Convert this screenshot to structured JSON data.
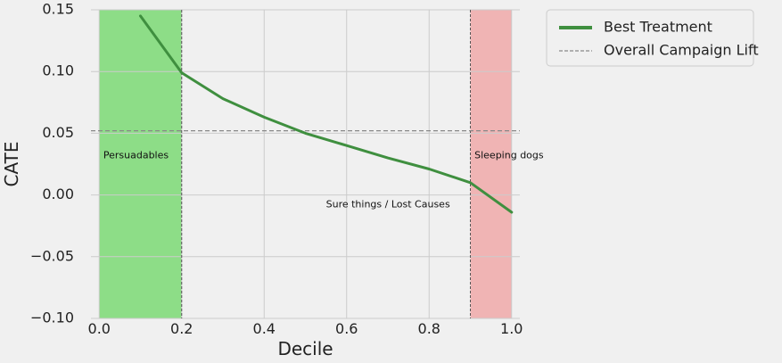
{
  "chart_data": {
    "type": "line",
    "xlabel": "Decile",
    "ylabel": "CATE",
    "xlim": [
      -0.02,
      1.02
    ],
    "ylim": [
      -0.1,
      0.15
    ],
    "x_ticks": [
      0.0,
      0.2,
      0.4,
      0.6,
      0.8,
      1.0
    ],
    "x_tick_labels": [
      "0.0",
      "0.2",
      "0.4",
      "0.6",
      "0.8",
      "1.0"
    ],
    "y_ticks": [
      -0.1,
      -0.05,
      0.0,
      0.05,
      0.1,
      0.15
    ],
    "y_tick_labels": [
      "−0.10",
      "−0.05",
      "0.00",
      "0.05",
      "0.10",
      "0.15"
    ],
    "grid": true,
    "legend_position": "outside-top-right",
    "series": [
      {
        "name": "Best Treatment",
        "color": "#3f8f3f",
        "style": "solid",
        "x": [
          0.1,
          0.2,
          0.3,
          0.4,
          0.5,
          0.6,
          0.7,
          0.8,
          0.9,
          1.0
        ],
        "y": [
          0.145,
          0.099,
          0.078,
          0.063,
          0.05,
          0.04,
          0.03,
          0.021,
          0.01,
          -0.014
        ]
      },
      {
        "name": "Overall Campaign Lift",
        "color": "#888888",
        "style": "dashed",
        "y_constant": 0.052
      }
    ],
    "regions": [
      {
        "x_start": 0.0,
        "x_end": 0.2,
        "color": "#8ddd87",
        "label": "Persuadables"
      },
      {
        "x_start": 0.9,
        "x_end": 1.0,
        "color": "#f0b4b4",
        "label": "Sleeping dogs"
      }
    ],
    "vertical_lines": [
      0.2,
      0.9
    ],
    "annotations": [
      {
        "text": "Persuadables",
        "x": 0.01,
        "y": 0.032
      },
      {
        "text": "Sure things / Lost Causes",
        "x": 0.55,
        "y": -0.008
      },
      {
        "text": "Sleeping dogs",
        "x": 0.91,
        "y": 0.032
      }
    ]
  }
}
